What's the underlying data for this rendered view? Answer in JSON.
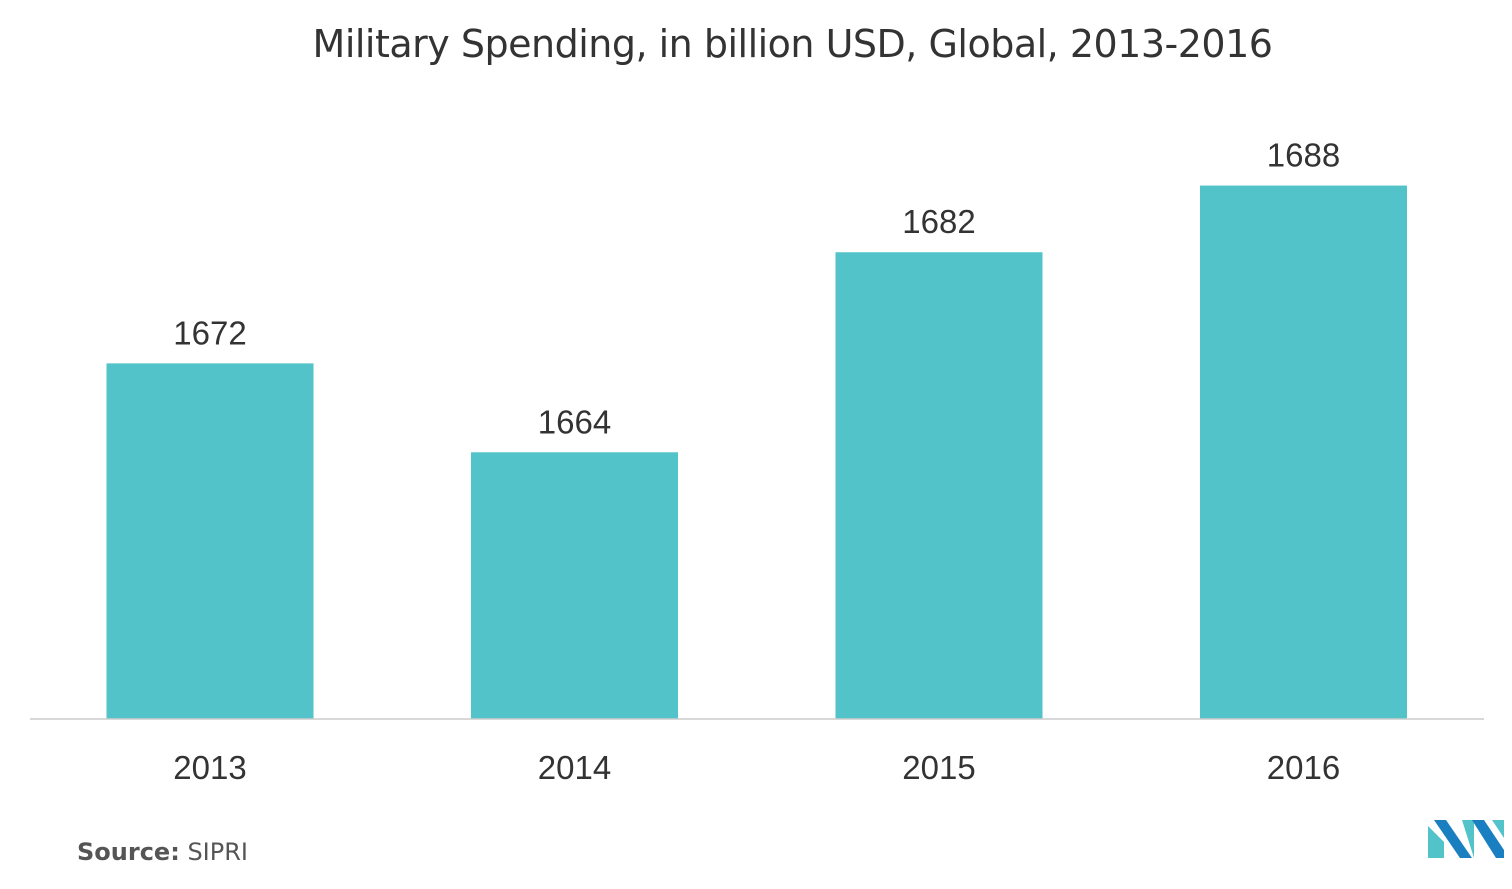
{
  "chart_data": {
    "type": "bar",
    "title": "Military Spending, in billion USD, Global, 2013-2016",
    "categories": [
      "2013",
      "2014",
      "2015",
      "2016"
    ],
    "values": [
      1672,
      1664,
      1682,
      1688
    ],
    "xlabel": "",
    "ylabel": "",
    "ylim": [
      1640,
      1693
    ],
    "grid": false,
    "bar_color": "#52c3c9",
    "axis_color": "#cccccc",
    "label_color": "#333333"
  },
  "source": {
    "label": "Source:",
    "value": "SIPRI"
  },
  "logo": {
    "icon": "mordor-intelligence-logo-icon",
    "colors": [
      "#1a7fc1",
      "#52c3c9"
    ]
  }
}
